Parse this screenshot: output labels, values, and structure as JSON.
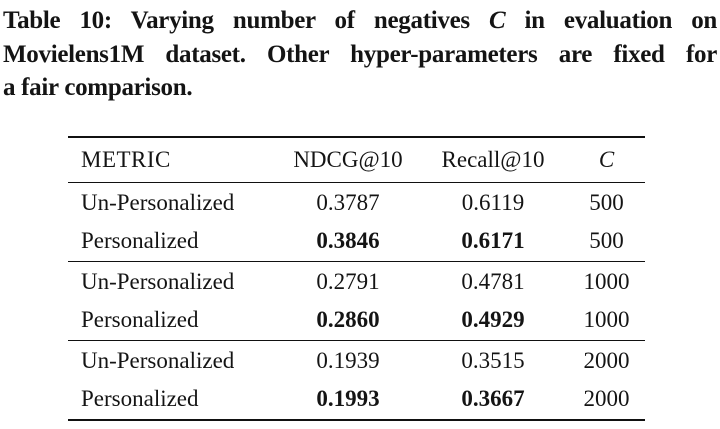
{
  "caption": {
    "line1_pre": "Table 10: Varying number of negatives",
    "line1_c": "C",
    "line1_post": "in evaluation on",
    "line2": "Movielens1M dataset. Other hyper-parameters are fixed for",
    "line3": "a fair comparison."
  },
  "table": {
    "headers": [
      "METRIC",
      "NDCG@10",
      "Recall@10",
      "C"
    ],
    "groups": [
      {
        "c_value": "500",
        "rows": [
          {
            "metric": "Un-Personalized",
            "ndcg": "0.3787",
            "recall": "0.6119",
            "c": "500"
          },
          {
            "metric": "Personalized",
            "ndcg": "0.3846",
            "recall": "0.6171",
            "c": "500"
          }
        ]
      },
      {
        "c_value": "1000",
        "rows": [
          {
            "metric": "Un-Personalized",
            "ndcg": "0.2791",
            "recall": "0.4781",
            "c": "1000"
          },
          {
            "metric": "Personalized",
            "ndcg": "0.2860",
            "recall": "0.4929",
            "c": "1000"
          }
        ]
      },
      {
        "c_value": "2000",
        "rows": [
          {
            "metric": "Un-Personalized",
            "ndcg": "0.1939",
            "recall": "0.3515",
            "c": "2000"
          },
          {
            "metric": "Personalized",
            "ndcg": "0.1993",
            "recall": "0.3667",
            "c": "2000"
          }
        ]
      }
    ]
  },
  "colors": {
    "text": "#141414",
    "background": "#ffffff",
    "rule": "#111111"
  }
}
